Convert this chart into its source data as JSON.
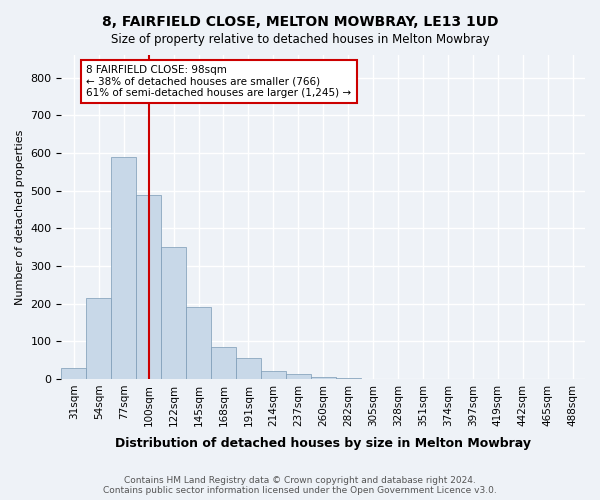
{
  "title1": "8, FAIRFIELD CLOSE, MELTON MOWBRAY, LE13 1UD",
  "title2": "Size of property relative to detached houses in Melton Mowbray",
  "xlabel": "Distribution of detached houses by size in Melton Mowbray",
  "ylabel": "Number of detached properties",
  "bar_values": [
    30,
    215,
    590,
    488,
    350,
    190,
    85,
    55,
    20,
    13,
    5,
    2,
    1,
    0,
    0,
    0,
    0,
    0,
    0,
    0,
    0
  ],
  "categories": [
    "31sqm",
    "54sqm",
    "77sqm",
    "100sqm",
    "122sqm",
    "145sqm",
    "168sqm",
    "191sqm",
    "214sqm",
    "237sqm",
    "260sqm",
    "282sqm",
    "305sqm",
    "328sqm",
    "351sqm",
    "374sqm",
    "397sqm",
    "419sqm",
    "442sqm",
    "465sqm",
    "488sqm"
  ],
  "bar_color": "#c8d8e8",
  "bar_edge_color": "#7a9ab5",
  "bg_color": "#eef2f7",
  "grid_color": "#ffffff",
  "vline_index": 3,
  "vline_color": "#cc0000",
  "annotation_text": "8 FAIRFIELD CLOSE: 98sqm\n← 38% of detached houses are smaller (766)\n61% of semi-detached houses are larger (1,245) →",
  "annotation_box_color": "#ffffff",
  "annotation_box_edge": "#cc0000",
  "footer": "Contains HM Land Registry data © Crown copyright and database right 2024.\nContains public sector information licensed under the Open Government Licence v3.0.",
  "ylim": [
    0,
    860
  ],
  "yticks": [
    0,
    100,
    200,
    300,
    400,
    500,
    600,
    700,
    800
  ]
}
